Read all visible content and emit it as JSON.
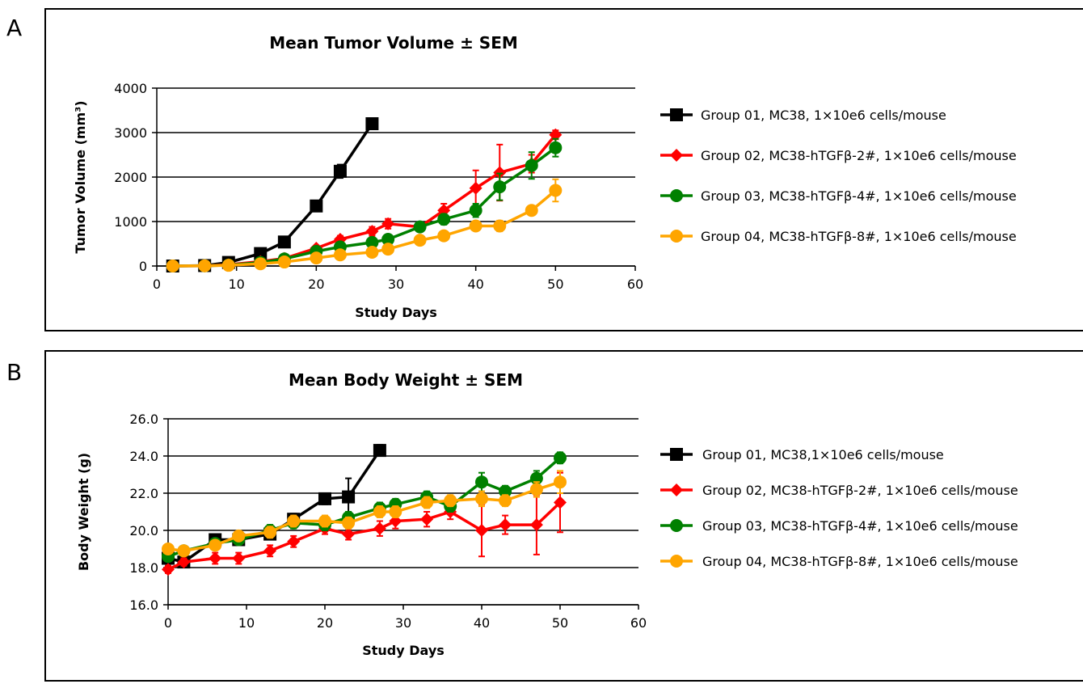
{
  "panels": [
    {
      "letter": "A",
      "chart_data": {
        "type": "line",
        "title": "Mean Tumor Volume ± SEM",
        "xlabel": "Study Days",
        "ylabel": "Tumor Volume (mm³)",
        "xlim": [
          0,
          60
        ],
        "ylim": [
          0,
          4000
        ],
        "xticks": [
          0,
          10,
          20,
          30,
          40,
          50,
          60
        ],
        "yticks": [
          0,
          1000,
          2000,
          3000,
          4000
        ],
        "ytick_labels": [
          "0",
          "1000",
          "2000",
          "3000",
          "4000"
        ],
        "grid": "horizontal",
        "legend_position": "right",
        "series": [
          {
            "name": "Group 01, MC38, 1×10e6 cells/mouse",
            "color": "#000000",
            "marker": "square",
            "x": [
              2,
              6,
              9,
              13,
              16,
              20,
              23,
              27
            ],
            "y": [
              0,
              10,
              80,
              280,
              540,
              1350,
              2130,
              3200
            ],
            "err": [
              0,
              5,
              20,
              50,
              60,
              80,
              150,
              90
            ]
          },
          {
            "name": "Group 02, MC38-hTGFβ-2#, 1×10e6 cells/mouse",
            "color": "#ff0000",
            "marker": "diamond",
            "x": [
              2,
              6,
              9,
              13,
              16,
              20,
              23,
              27,
              29,
              33,
              36,
              40,
              43,
              47,
              50
            ],
            "y": [
              0,
              5,
              30,
              100,
              170,
              400,
              600,
              780,
              950,
              880,
              1250,
              1750,
              2100,
              2300,
              2950
            ],
            "err": [
              0,
              5,
              10,
              20,
              30,
              50,
              80,
              100,
              110,
              90,
              150,
              400,
              630,
              200,
              100
            ]
          },
          {
            "name": "Group 03, MC38-hTGFβ-4#, 1×10e6 cells/mouse",
            "color": "#008000",
            "marker": "circle",
            "x": [
              2,
              6,
              9,
              13,
              16,
              20,
              23,
              27,
              29,
              33,
              36,
              40,
              43,
              47,
              50
            ],
            "y": [
              0,
              5,
              20,
              80,
              160,
              330,
              430,
              530,
              600,
              880,
              1050,
              1250,
              1780,
              2260,
              2660
            ],
            "err": [
              0,
              5,
              10,
              20,
              30,
              50,
              60,
              80,
              80,
              100,
              120,
              150,
              300,
              300,
              200
            ]
          },
          {
            "name": "Group 04, MC38-hTGFβ-8#, 1×10e6 cells/mouse",
            "color": "#ffa500",
            "marker": "circle",
            "x": [
              2,
              6,
              9,
              13,
              16,
              20,
              23,
              27,
              29,
              33,
              36,
              40,
              43,
              47,
              50
            ],
            "y": [
              0,
              5,
              15,
              50,
              90,
              180,
              250,
              310,
              380,
              580,
              680,
              900,
              900,
              1250,
              1700
            ],
            "err": [
              0,
              5,
              10,
              15,
              20,
              30,
              40,
              50,
              60,
              80,
              80,
              100,
              120,
              100,
              250
            ]
          }
        ]
      }
    },
    {
      "letter": "B",
      "chart_data": {
        "type": "line",
        "title": "Mean Body Weight ± SEM",
        "xlabel": "Study Days",
        "ylabel": "Body Weight (g)",
        "xlim": [
          0,
          60
        ],
        "ylim": [
          16,
          26
        ],
        "xticks": [
          0,
          10,
          20,
          30,
          40,
          50,
          60
        ],
        "yticks": [
          16,
          18,
          20,
          22,
          24,
          26
        ],
        "ytick_labels": [
          "16.0",
          "18.0",
          "20.0",
          "22.0",
          "24.0",
          "26.0"
        ],
        "grid": "horizontal",
        "legend_position": "right",
        "series": [
          {
            "name": "Group 01, MC38,1×10e6 cells/mouse",
            "color": "#000000",
            "marker": "square",
            "x": [
              0,
              2,
              6,
              9,
              13,
              16,
              20,
              23,
              27
            ],
            "y": [
              18.5,
              18.3,
              19.5,
              19.5,
              19.8,
              20.6,
              21.7,
              21.8,
              24.3
            ],
            "err": [
              0.2,
              0.2,
              0.3,
              0.3,
              0.3,
              0.3,
              0.3,
              1.0,
              0.3
            ]
          },
          {
            "name": "Group 02, MC38-hTGFβ-2#, 1×10e6 cells/mouse",
            "color": "#ff0000",
            "marker": "diamond",
            "x": [
              0,
              2,
              6,
              9,
              13,
              16,
              20,
              23,
              27,
              29,
              33,
              36,
              40,
              43,
              47,
              50
            ],
            "y": [
              17.9,
              18.3,
              18.5,
              18.5,
              18.9,
              19.4,
              20.1,
              19.8,
              20.1,
              20.5,
              20.6,
              21.0,
              20.0,
              20.3,
              20.3,
              21.5
            ],
            "err": [
              0.2,
              0.2,
              0.3,
              0.3,
              0.3,
              0.3,
              0.3,
              0.3,
              0.4,
              0.4,
              0.4,
              0.4,
              1.4,
              0.5,
              1.6,
              1.6
            ]
          },
          {
            "name": "Group 03, MC38-hTGFβ-4#, 1×10e6 cells/mouse",
            "color": "#008000",
            "marker": "circle",
            "x": [
              0,
              2,
              6,
              9,
              13,
              16,
              20,
              23,
              27,
              29,
              33,
              36,
              40,
              43,
              47,
              50
            ],
            "y": [
              18.6,
              18.9,
              19.3,
              19.5,
              20.0,
              20.4,
              20.3,
              20.7,
              21.2,
              21.4,
              21.8,
              21.3,
              22.6,
              22.1,
              22.8,
              23.9
            ],
            "err": [
              0.2,
              0.2,
              0.2,
              0.2,
              0.3,
              0.3,
              0.3,
              0.3,
              0.3,
              0.3,
              0.3,
              0.3,
              0.5,
              0.3,
              0.4,
              0.3
            ]
          },
          {
            "name": "Group 04, MC38-hTGFβ-8#, 1×10e6 cells/mouse",
            "color": "#ffa500",
            "marker": "circle",
            "x": [
              0,
              2,
              6,
              9,
              13,
              16,
              20,
              23,
              27,
              29,
              33,
              36,
              40,
              43,
              47,
              50
            ],
            "y": [
              19.0,
              18.9,
              19.2,
              19.7,
              19.9,
              20.5,
              20.5,
              20.4,
              21.0,
              21.0,
              21.5,
              21.6,
              21.7,
              21.6,
              22.2,
              22.6
            ],
            "err": [
              0.2,
              0.2,
              0.2,
              0.2,
              0.3,
              0.3,
              0.3,
              0.3,
              0.3,
              0.3,
              0.3,
              0.3,
              0.4,
              0.3,
              0.4,
              0.6
            ]
          }
        ]
      }
    }
  ]
}
